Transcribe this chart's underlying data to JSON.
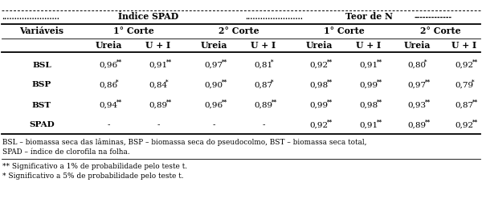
{
  "dots_left": ".......................",
  "title_spad": "Índice SPAD",
  "dots_mid": ".......................",
  "title_n": "Teor de N",
  "dashes_right": "-------------",
  "header1_labels": [
    "Variáveis",
    "1° Corte",
    "2° Corte",
    "1° Corte",
    "2° Corte"
  ],
  "header2_labels": [
    "Ureia",
    "U + I",
    "Ureia",
    "U + I",
    "Ureia",
    "U + I",
    "Ureia",
    "U + I"
  ],
  "row_labels": [
    "BSL",
    "BSP",
    "BST",
    "SPAD"
  ],
  "data": [
    [
      "0,96",
      "**",
      "0,91",
      "**",
      "0,97",
      "**",
      "0,81",
      "*",
      "0,92",
      "**",
      "0,91",
      "**",
      "0,80",
      "*",
      "0,92",
      "**"
    ],
    [
      "0,86",
      "*",
      "0,84",
      "*",
      "0,90",
      "**",
      "0,87",
      "*",
      "0,98",
      "**",
      "0,99",
      "**",
      "0,97",
      "**",
      "0,79",
      "*"
    ],
    [
      "0,94",
      "**",
      "0,89",
      "**",
      "0,96",
      "**",
      "0,89",
      "**",
      "0,99",
      "**",
      "0,98",
      "**",
      "0,93",
      "**",
      "0,87",
      "**"
    ],
    [
      "-",
      "",
      "-",
      "",
      "-",
      "",
      "-",
      "",
      "0,92",
      "**",
      "0,91",
      "**",
      "0,89",
      "**",
      "0,92",
      "**"
    ]
  ],
  "footnote1": "BSL – biomassa seca das lâminas, BSP – biomassa seca do pseudocolmo, BST – biomassa seca total,",
  "footnote2": "SPAD – índice de clorofila na folha.",
  "footnote3": "** Significativo a 1% de probabilidade pelo teste t.",
  "footnote4": "* Significativo a 5% de probabilidade pelo teste t.",
  "fig_width": 6.0,
  "fig_height": 2.63,
  "dpi": 100
}
